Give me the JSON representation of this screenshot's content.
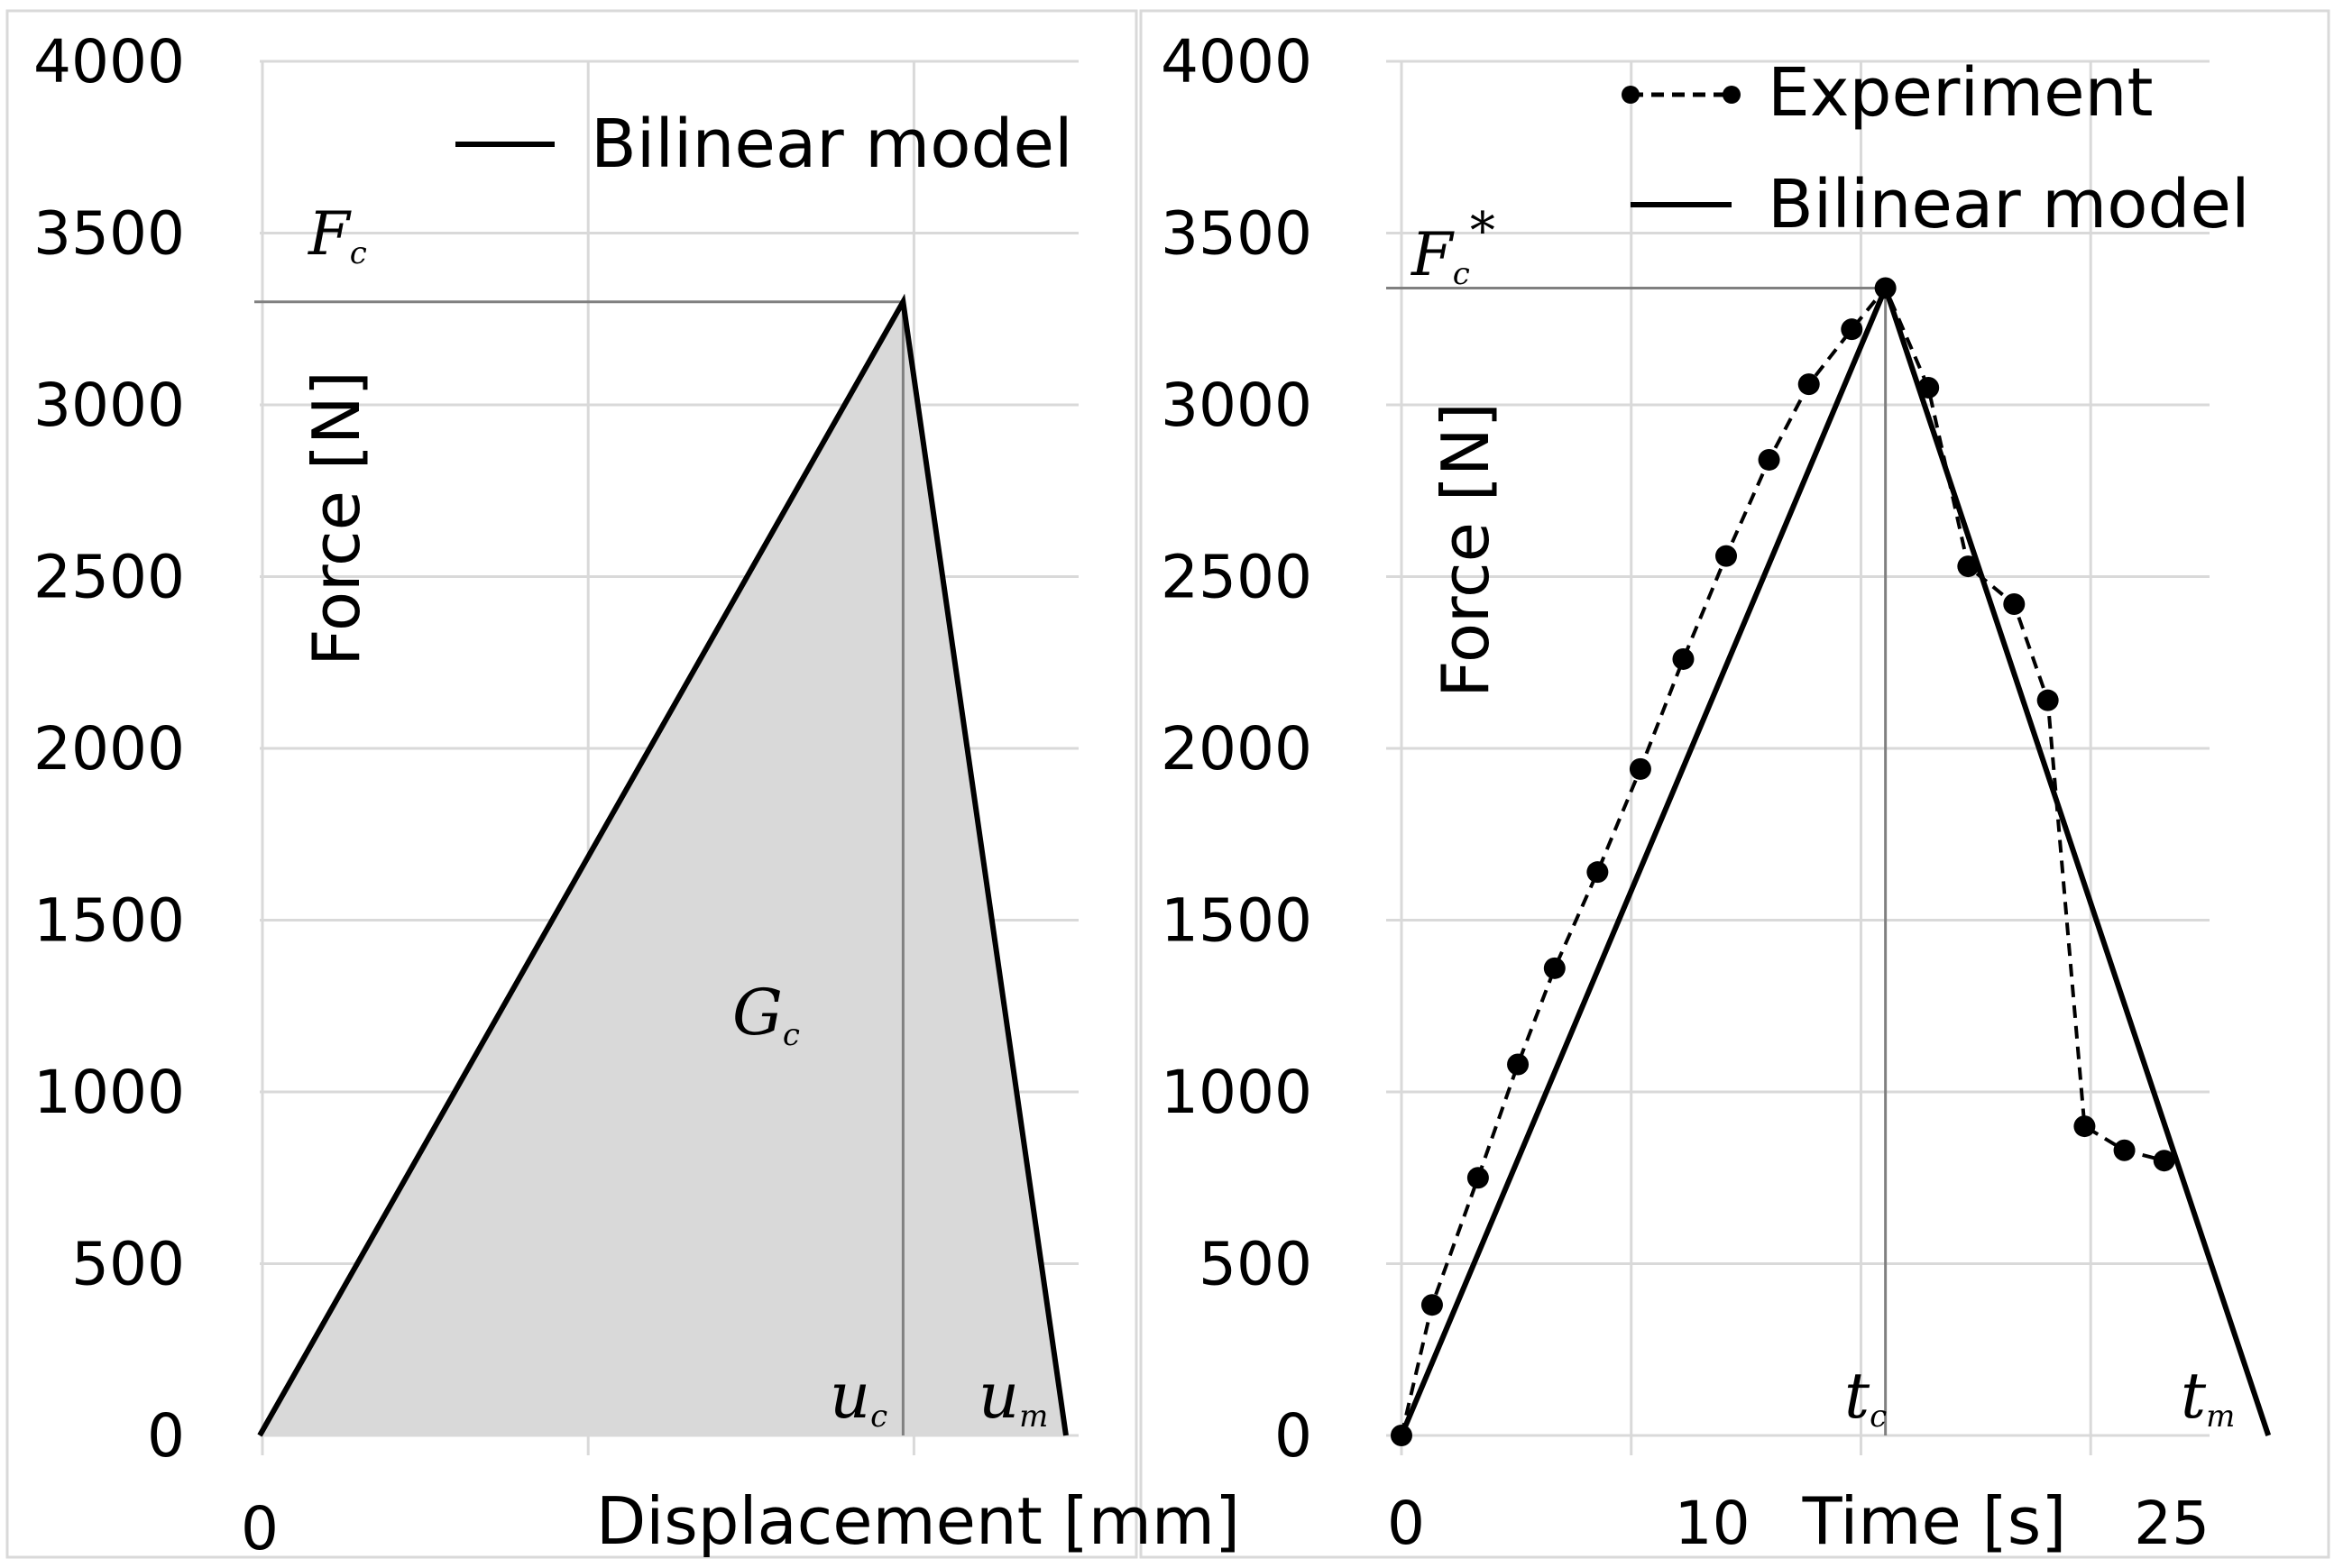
{
  "chart_data": [
    {
      "type": "line",
      "xlabel": "Displacement [mm]",
      "ylabel": "Force [N]",
      "ylim": [
        0,
        4000
      ],
      "yticks": [
        "0",
        "500",
        "1000",
        "1500",
        "2000",
        "2500",
        "3000",
        "3500",
        "4000"
      ],
      "xticks": [
        "0"
      ],
      "grid": "on",
      "legend_position": "top-right",
      "series": [
        {
          "name": "Bilinear model",
          "points": [
            [
              0,
              0
            ],
            [
              0.79,
              3300
            ],
            [
              0.99,
              0
            ]
          ]
        }
      ],
      "shaded_area": "triangle under bilinear model",
      "annotations": {
        "peak_force": "Fc",
        "area": "Gc",
        "critical_displacement": "uc",
        "max_displacement": "um"
      }
    },
    {
      "type": "line",
      "xlabel": "Time [s]",
      "ylabel": "Force [N]",
      "ylim": [
        0,
        4000
      ],
      "xlim": [
        -0.5,
        28.5
      ],
      "yticks": [
        "0",
        "500",
        "1000",
        "1500",
        "2000",
        "2500",
        "3000",
        "3500",
        "4000"
      ],
      "xticks": [
        "0",
        "10",
        "25"
      ],
      "grid": "on",
      "legend_position": "top-right",
      "series": [
        {
          "name": "Experiment",
          "style": "dashed-markers",
          "x": [
            0,
            1.0,
            2.5,
            3.8,
            5.0,
            6.4,
            7.8,
            9.2,
            10.6,
            12.0,
            13.3,
            14.7,
            15.8,
            17.2,
            18.5,
            20.0,
            21.1,
            22.3,
            23.6,
            24.9
          ],
          "y": [
            0,
            380,
            750,
            1080,
            1360,
            1640,
            1940,
            2260,
            2560,
            2840,
            3060,
            3220,
            3340,
            3050,
            2530,
            2420,
            2140,
            900,
            830,
            800
          ]
        },
        {
          "name": "Bilinear model",
          "style": "solid",
          "x": [
            0,
            15.8,
            28.3
          ],
          "y": [
            0,
            3340,
            0
          ]
        }
      ],
      "annotations": {
        "peak_force": "Fc*",
        "critical_time": "tc",
        "max_time": "tm"
      }
    }
  ],
  "text": {
    "fc": "F",
    "fc_sub": "c",
    "fcstar_star": "*",
    "gc": "G",
    "gc_sub": "c",
    "uc": "u",
    "uc_sub": "c",
    "um": "u",
    "um_sub": "m",
    "tc": "t",
    "tc_sub": "c",
    "tm": "t",
    "tm_sub": "m"
  }
}
